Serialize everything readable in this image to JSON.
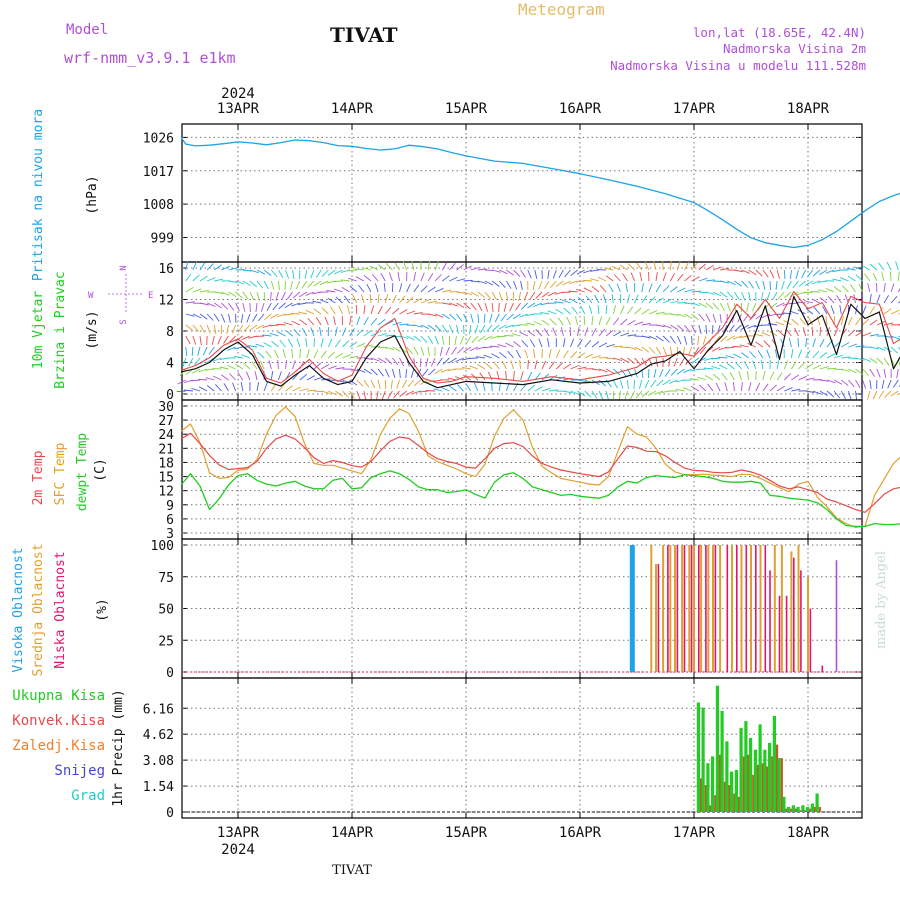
{
  "header": {
    "model_label": "Model",
    "model_name": "wrf-nmm_v3.9.1 e1km",
    "station": "TIVAT",
    "product": "Meteogram",
    "location_line1": "lon,lat (18.65E, 42.4N)",
    "location_line2": "Nadmorska Visina 2m",
    "location_line3": "Nadmorska Visina u modelu 111.528m"
  },
  "footer": {
    "station": "TIVAT",
    "credit": "made by Angel"
  },
  "colors": {
    "pressure": "#1fa3e6",
    "wind_label": "#22cc22",
    "wind_dir": "#b04fd8",
    "temp2m": "#e84a4a",
    "sfc_temp": "#e0a030",
    "dewpt": "#22cc22",
    "high_cloud": "#1fa3e6",
    "mid_cloud": "#e0a030",
    "low_cloud": "#e0166e",
    "total_precip": "#22cc22",
    "conv_precip": "#e84a4a",
    "frozen_precip": "#f0802a",
    "snow": "#4444dd",
    "hail": "#22cccc"
  },
  "chart_data": {
    "type": "line",
    "time_axis": {
      "year": "2024",
      "dates": [
        "13APR",
        "14APR",
        "15APR",
        "16APR",
        "17APR",
        "18APR"
      ],
      "start_hour": 0,
      "end_hour": 144,
      "note_start": "12APR 12UTC"
    },
    "panels": {
      "pressure": {
        "ylabel_name": "Pritisak na nivou mora",
        "unit": "(hPa)",
        "yticks": [
          "999",
          "1008",
          "1017",
          "1026"
        ],
        "ylim": [
          994,
          1028
        ],
        "x": [
          -12,
          -11,
          -9,
          -6,
          -3,
          0,
          3,
          6,
          9,
          12,
          15,
          18,
          21,
          24,
          27,
          30,
          33,
          36,
          39,
          42,
          45,
          48,
          54,
          60,
          66,
          72,
          78,
          84,
          90,
          96,
          99,
          102,
          105,
          108,
          111,
          114,
          117,
          120,
          123,
          126,
          129,
          132,
          135,
          138,
          141,
          144
        ],
        "y": [
          1026,
          1024.2,
          1023.7,
          1023.9,
          1024.3,
          1024.8,
          1024.5,
          1024.0,
          1024.6,
          1025.3,
          1025.1,
          1024.6,
          1023.8,
          1023.6,
          1023.0,
          1022.6,
          1022.9,
          1023.9,
          1023.5,
          1022.9,
          1021.9,
          1021.0,
          1019.6,
          1019.0,
          1017.6,
          1016.2,
          1014.6,
          1012.8,
          1010.8,
          1008.4,
          1006.2,
          1003.8,
          1001.2,
          998.9,
          997.6,
          996.9,
          996.3,
          996.9,
          998.4,
          1000.6,
          1003.4,
          1006.2,
          1008.7,
          1010.3,
          1011.6,
          1012.2
        ]
      },
      "wind": {
        "ylabel_name": "10m Vjetar",
        "ylabel_sub": "Brzina i Pravac",
        "unit": "(m/s)",
        "yticks": [
          "0",
          "4",
          "8",
          "12",
          "16"
        ],
        "ylim": [
          0,
          16
        ],
        "compass": {
          "north": "N",
          "south": "S",
          "east": "E",
          "west": "W"
        },
        "x": [
          -12,
          -9,
          -6,
          -3,
          0,
          3,
          6,
          9,
          12,
          15,
          18,
          21,
          24,
          27,
          30,
          33,
          36,
          39,
          42,
          45,
          48,
          54,
          60,
          66,
          72,
          78,
          84,
          87,
          90,
          93,
          96,
          99,
          102,
          105,
          108,
          111,
          114,
          117,
          120,
          123,
          126,
          129,
          132,
          135,
          138,
          141,
          144
        ],
        "speed": [
          2.8,
          3.2,
          4.0,
          5.6,
          6.6,
          5.0,
          1.6,
          1.0,
          2.4,
          3.6,
          2.0,
          1.2,
          1.6,
          4.6,
          6.6,
          7.4,
          4.0,
          1.6,
          0.8,
          1.2,
          1.6,
          1.4,
          1.2,
          1.8,
          1.4,
          1.6,
          2.6,
          3.8,
          4.2,
          5.4,
          3.2,
          5.6,
          7.4,
          10.6,
          6.2,
          11.2,
          4.4,
          12.4,
          8.8,
          10.0,
          5.0,
          11.4,
          9.6,
          10.4,
          3.2,
          6.4,
          3.4
        ],
        "gust": [
          3.0,
          3.6,
          4.6,
          6.2,
          7.0,
          5.6,
          2.0,
          1.4,
          2.8,
          4.4,
          2.6,
          1.6,
          2.4,
          6.0,
          8.4,
          9.6,
          4.8,
          2.0,
          1.4,
          1.6,
          2.2,
          2.0,
          1.6,
          2.2,
          1.8,
          2.4,
          3.4,
          4.6,
          4.8,
          5.2,
          4.8,
          6.6,
          8.4,
          11.4,
          9.6,
          12.0,
          9.6,
          13.0,
          10.8,
          11.6,
          8.4,
          12.4,
          11.6,
          11.4,
          6.4,
          7.6,
          4.4
        ]
      },
      "temperature": {
        "ylabel_2m": "2m Temp",
        "ylabel_sfc": "SFC Temp",
        "ylabel_dew": "dewpt Temp",
        "unit": "(C)",
        "yticks": [
          "3",
          "6",
          "9",
          "12",
          "15",
          "18",
          "21",
          "24",
          "27",
          "30"
        ],
        "ylim": [
          3,
          30
        ],
        "x": [
          -12,
          -10,
          -8,
          -6,
          -4,
          -2,
          0,
          2,
          4,
          6,
          8,
          10,
          12,
          14,
          16,
          18,
          20,
          22,
          24,
          26,
          28,
          30,
          32,
          34,
          36,
          38,
          40,
          42,
          44,
          46,
          48,
          50,
          52,
          54,
          56,
          58,
          60,
          62,
          64,
          66,
          68,
          70,
          72,
          74,
          76,
          78,
          80,
          82,
          84,
          86,
          88,
          90,
          92,
          94,
          96,
          98,
          100,
          102,
          104,
          106,
          108,
          110,
          112,
          114,
          116,
          118,
          120,
          122,
          124,
          126,
          128,
          130,
          132,
          134,
          136,
          138,
          140,
          142,
          144
        ],
        "t2m": [
          23.0,
          24.2,
          22.0,
          19.5,
          17.5,
          16.5,
          16.7,
          16.9,
          18.2,
          21.0,
          23.0,
          23.8,
          23.0,
          21.2,
          19.0,
          17.8,
          18.4,
          18.0,
          17.3,
          17.0,
          18.2,
          20.5,
          22.5,
          23.4,
          23.1,
          21.6,
          20.0,
          18.8,
          18.2,
          17.8,
          17.0,
          16.8,
          18.8,
          21.0,
          22.0,
          22.2,
          21.4,
          19.4,
          17.8,
          17.0,
          16.4,
          16.0,
          15.6,
          15.3,
          15.0,
          16.0,
          18.8,
          21.5,
          21.2,
          20.4,
          20.3,
          19.4,
          18.0,
          16.8,
          16.3,
          16.2,
          15.9,
          15.8,
          15.9,
          16.4,
          16.0,
          15.3,
          14.2,
          13.0,
          12.4,
          12.8,
          12.2,
          11.6,
          10.2,
          9.6,
          8.8,
          8.0,
          7.4,
          9.2,
          11.2,
          12.4,
          12.8,
          12.7,
          12.8
        ],
        "sfc": [
          24.6,
          26.2,
          22.2,
          15.8,
          14.6,
          14.8,
          16.3,
          16.6,
          18.6,
          24.0,
          28.0,
          29.8,
          27.8,
          22.0,
          17.8,
          17.4,
          17.4,
          16.8,
          16.2,
          15.6,
          18.6,
          24.0,
          27.4,
          29.4,
          28.4,
          24.6,
          19.4,
          18.2,
          17.4,
          16.6,
          15.6,
          15.0,
          17.6,
          23.6,
          27.4,
          29.2,
          27.0,
          21.2,
          17.2,
          15.8,
          14.6,
          14.2,
          13.8,
          13.4,
          13.2,
          15.0,
          20.4,
          25.6,
          24.0,
          23.4,
          21.0,
          17.6,
          16.0,
          15.4,
          15.4,
          15.5,
          15.3,
          15.2,
          15.0,
          15.5,
          15.4,
          14.6,
          13.6,
          12.6,
          11.8,
          13.4,
          14.0,
          10.6,
          8.6,
          6.2,
          5.0,
          4.2,
          4.4,
          11.0,
          14.4,
          17.8,
          19.6,
          19.4,
          19.3
        ],
        "dewpt": [
          13.2,
          15.6,
          13.0,
          8.0,
          10.2,
          13.2,
          15.2,
          15.6,
          14.2,
          13.4,
          13.0,
          13.6,
          14.0,
          13.0,
          12.4,
          12.4,
          14.2,
          14.6,
          12.4,
          12.6,
          14.8,
          15.6,
          16.2,
          15.6,
          14.4,
          12.8,
          12.2,
          12.2,
          11.6,
          11.8,
          12.2,
          11.2,
          10.4,
          13.8,
          15.4,
          15.8,
          14.6,
          12.8,
          12.2,
          11.6,
          11.0,
          11.2,
          10.8,
          10.6,
          10.4,
          11.0,
          12.8,
          14.0,
          13.6,
          14.8,
          15.2,
          15.0,
          14.8,
          15.4,
          15.2,
          15.0,
          14.6,
          14.0,
          13.8,
          13.8,
          14.0,
          13.6,
          11.0,
          10.8,
          10.4,
          10.2,
          10.0,
          9.4,
          8.0,
          6.0,
          4.6,
          4.4,
          4.4,
          5.0,
          4.8,
          4.8,
          5.0,
          5.0,
          5.0
        ]
      },
      "clouds": {
        "ylabel_high": "Visoka Oblacnost",
        "ylabel_mid": "Srednja Oblacnost",
        "ylabel_low": "Niska Oblacnost",
        "unit": "(%)",
        "yticks": [
          "0",
          "25",
          "50",
          "75",
          "100"
        ],
        "ylim": [
          0,
          100
        ],
        "high": {
          "x": [
            83
          ],
          "v": [
            100
          ]
        },
        "mid": {
          "x": [
            87,
            88,
            89.5,
            91,
            92,
            93.5,
            95,
            96,
            97.5,
            99,
            100,
            101.5,
            104,
            106,
            108,
            110,
            113,
            114.5,
            116.5,
            118,
            120,
            143.5,
            144
          ],
          "v": [
            100,
            85,
            100,
            100,
            100,
            100,
            100,
            100,
            100,
            100,
            100,
            100,
            100,
            100,
            100,
            100,
            100,
            100,
            95,
            100,
            75,
            70,
            100
          ]
        },
        "low": {
          "x": [
            88.5,
            90.5,
            92.5,
            94,
            95.5,
            97,
            98.5,
            100.5,
            103,
            105,
            107,
            109,
            111,
            112,
            114,
            115.5,
            117,
            118.5,
            120.5,
            123
          ],
          "v": [
            85,
            100,
            100,
            100,
            100,
            100,
            100,
            100,
            100,
            100,
            100,
            100,
            100,
            80,
            60,
            60,
            90,
            80,
            50,
            5
          ]
        },
        "purple": {
          "x": [
            126
          ],
          "v": [
            88
          ]
        }
      },
      "precip": {
        "legend_total": "Ukupna Kisa",
        "legend_conv": "Konvek.Kisa",
        "legend_frozen": "Zaledj.Kisa",
        "legend_snow": "Snijeg",
        "legend_hail": "Grad",
        "ylabel": "1hr Precip (mm)",
        "yticks": [
          "0",
          "1.54",
          "3.08",
          "4.62",
          "6.16"
        ],
        "ylim": [
          0,
          7.6
        ],
        "x": [
          97,
          98,
          99,
          100,
          101,
          102,
          103,
          104,
          105,
          106,
          107,
          108,
          109,
          110,
          111,
          112,
          113,
          114,
          115,
          116,
          117,
          118,
          119,
          120,
          121,
          122
        ],
        "total": [
          6.5,
          6.2,
          2.9,
          3.3,
          7.5,
          6.0,
          4.2,
          2.4,
          2.5,
          5.0,
          5.4,
          4.4,
          3.7,
          5.2,
          3.7,
          4.1,
          5.7,
          3.2,
          0.9,
          0.3,
          0.4,
          0.3,
          0.4,
          0.3,
          0.5,
          1.1
        ],
        "convective": [
          2.0,
          1.6,
          0.4,
          1.0,
          3.4,
          1.8,
          1.6,
          1.1,
          0.9,
          3.3,
          3.4,
          2.2,
          2.8,
          2.9,
          2.7,
          3.3,
          4.0,
          3.2,
          0.2,
          0.2,
          0.2,
          0.1,
          0.1,
          0.2,
          0.3,
          0.3
        ]
      }
    }
  }
}
